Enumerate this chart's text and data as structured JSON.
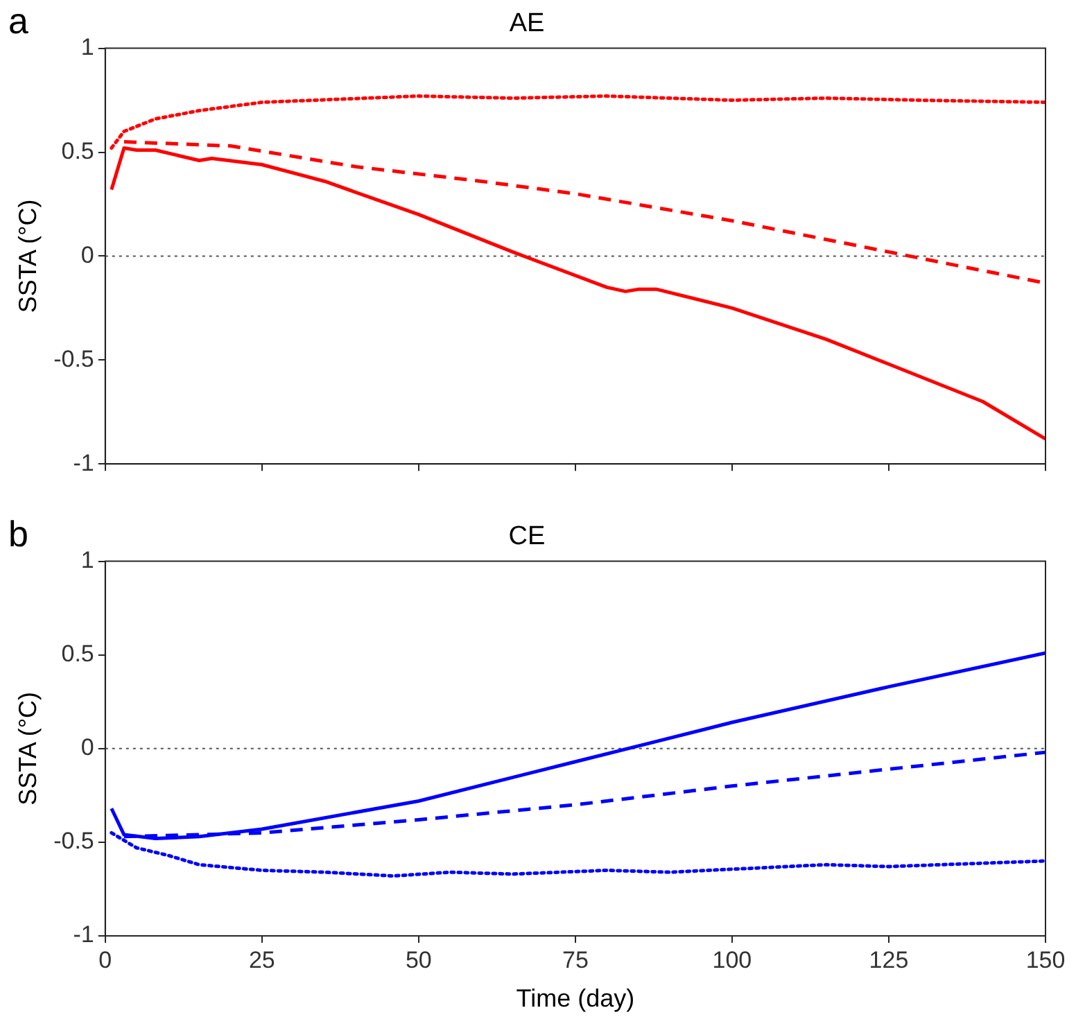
{
  "chart_data": [
    {
      "type": "line",
      "title": "AE",
      "ylabel": "SSTA (°C)",
      "annotations": [
        "a"
      ],
      "xlim": [
        0,
        150
      ],
      "xticks": [
        0,
        25,
        50,
        75,
        100,
        125,
        150
      ],
      "ylim": [
        -1,
        1
      ],
      "yticks": [
        -1,
        -0.5,
        0,
        0.5,
        1
      ],
      "tick_labels": "y",
      "grid": false,
      "legend": false,
      "marker": "none",
      "ref_lines": [
        {
          "axis": "y",
          "value": 0,
          "color": "#555555",
          "line_style": "dotted"
        }
      ],
      "series": [
        {
          "color": "#ff0000",
          "line_style": "solid",
          "x": [
            1,
            3,
            5,
            8,
            15,
            17,
            25,
            35,
            50,
            65,
            80,
            83,
            85,
            88,
            100,
            115,
            125,
            140,
            150
          ],
          "values": [
            0.32,
            0.52,
            0.51,
            0.51,
            0.46,
            0.47,
            0.44,
            0.36,
            0.2,
            0.02,
            -0.15,
            -0.17,
            -0.16,
            -0.16,
            -0.25,
            -0.4,
            -0.52,
            -0.7,
            -0.88
          ]
        },
        {
          "color": "#ff0000",
          "line_style": "dashed",
          "x": [
            3,
            20,
            40,
            60,
            75,
            100,
            125,
            150
          ],
          "values": [
            0.55,
            0.53,
            0.43,
            0.36,
            0.3,
            0.17,
            0.02,
            -0.13
          ]
        },
        {
          "color": "#ff0000",
          "line_style": "dotted",
          "x": [
            1,
            3,
            8,
            15,
            25,
            50,
            65,
            80,
            100,
            115,
            130,
            150
          ],
          "values": [
            0.52,
            0.6,
            0.66,
            0.7,
            0.74,
            0.77,
            0.76,
            0.77,
            0.75,
            0.76,
            0.75,
            0.74
          ]
        }
      ]
    },
    {
      "type": "line",
      "title": "CE",
      "xlabel": "Time (day)",
      "ylabel": "SSTA (°C)",
      "annotations": [
        "b"
      ],
      "xlim": [
        0,
        150
      ],
      "xticks": [
        0,
        25,
        50,
        75,
        100,
        125,
        150
      ],
      "ylim": [
        -1,
        1
      ],
      "yticks": [
        -1,
        -0.5,
        0,
        0.5,
        1
      ],
      "grid": false,
      "legend": false,
      "marker": "none",
      "ref_lines": [
        {
          "axis": "y",
          "value": 0,
          "color": "#555555",
          "line_style": "dotted"
        }
      ],
      "series": [
        {
          "color": "#0000ff",
          "line_style": "solid",
          "x": [
            1,
            3,
            8,
            15,
            25,
            50,
            75,
            87,
            100,
            125,
            150
          ],
          "values": [
            -0.32,
            -0.46,
            -0.48,
            -0.47,
            -0.43,
            -0.28,
            -0.07,
            0.03,
            0.14,
            0.33,
            0.51
          ]
        },
        {
          "color": "#0000ff",
          "line_style": "dashed",
          "x": [
            3,
            15,
            25,
            50,
            75,
            100,
            125,
            150
          ],
          "values": [
            -0.47,
            -0.46,
            -0.45,
            -0.38,
            -0.3,
            -0.2,
            -0.11,
            -0.02
          ]
        },
        {
          "color": "#0000ff",
          "line_style": "dotted",
          "x": [
            1,
            5,
            10,
            15,
            25,
            35,
            46,
            55,
            65,
            80,
            90,
            115,
            125,
            150
          ],
          "values": [
            -0.45,
            -0.53,
            -0.57,
            -0.62,
            -0.65,
            -0.66,
            -0.68,
            -0.66,
            -0.67,
            -0.65,
            -0.66,
            -0.62,
            -0.63,
            -0.6
          ]
        }
      ]
    }
  ]
}
